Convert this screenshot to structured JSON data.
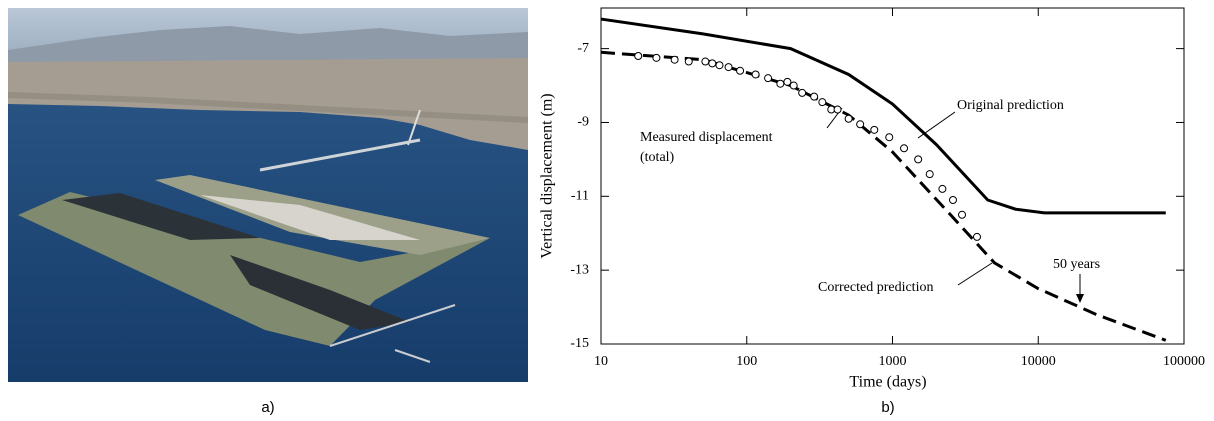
{
  "figure": {
    "captions": [
      "a)",
      "b)"
    ]
  },
  "chart_data": {
    "type": "line",
    "x_label": "Time (days)",
    "y_label": "Vertical displacement (m)",
    "xlim": [
      10,
      100000
    ],
    "xticks": [
      10,
      100,
      1000,
      10000,
      100000
    ],
    "log_x": true,
    "ylim": [
      -15,
      -5.9
    ],
    "yticks": [
      -7,
      -9,
      -11,
      -13,
      -15
    ],
    "series": [
      {
        "name": "Original prediction",
        "color": "#000000",
        "dash": false,
        "x": [
          10,
          50,
          200,
          500,
          1000,
          2000,
          4500,
          7000,
          11000,
          75000
        ],
        "values": [
          -6.2,
          -6.6,
          -7.0,
          -7.7,
          -8.5,
          -9.6,
          -11.1,
          -11.35,
          -11.45,
          -11.45
        ]
      },
      {
        "name": "Corrected prediction",
        "color": "#000000",
        "dash": true,
        "x": [
          10,
          50,
          200,
          500,
          1000,
          2500,
          5000,
          10000,
          25000,
          75000
        ],
        "values": [
          -7.1,
          -7.3,
          -8.0,
          -8.8,
          -9.8,
          -11.5,
          -12.8,
          -13.5,
          -14.2,
          -14.9
        ]
      },
      {
        "name": "Measured displacement",
        "color": "#000000",
        "marker": "circle",
        "x": [
          18,
          24,
          32,
          40,
          52,
          58,
          65,
          75,
          90,
          115,
          140,
          170,
          190,
          210,
          240,
          290,
          330,
          380,
          420,
          500,
          600,
          750,
          950,
          1200,
          1500,
          1800,
          2200,
          2600,
          3000,
          3800
        ],
        "values": [
          -7.2,
          -7.25,
          -7.3,
          -7.35,
          -7.35,
          -7.4,
          -7.45,
          -7.5,
          -7.6,
          -7.7,
          -7.8,
          -7.95,
          -7.9,
          -8.0,
          -8.2,
          -8.3,
          -8.45,
          -8.65,
          -8.65,
          -8.9,
          -9.05,
          -9.2,
          -9.4,
          -9.7,
          -10.0,
          -10.4,
          -10.8,
          -11.1,
          -11.5,
          -12.1
        ]
      }
    ],
    "annotations": [
      "(total)",
      "50 years"
    ]
  }
}
